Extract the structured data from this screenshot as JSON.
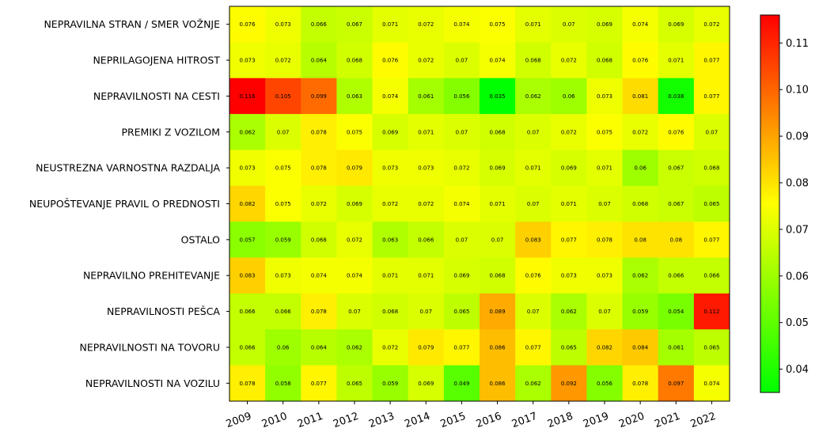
{
  "chart_data": {
    "type": "heatmap",
    "title": "",
    "xlabel": "",
    "ylabel": "",
    "colorscale": [
      "#00ff00",
      "#ffff00",
      "#ff0000"
    ],
    "vmin": 0.035,
    "vmax": 0.116,
    "colorbar_ticks": [
      "0.04",
      "0.05",
      "0.06",
      "0.07",
      "0.08",
      "0.09",
      "0.10",
      "0.11"
    ],
    "columns": [
      "2009",
      "2010",
      "2011",
      "2012",
      "2013",
      "2014",
      "2015",
      "2016",
      "2017",
      "2018",
      "2019",
      "2020",
      "2021",
      "2022"
    ],
    "rows": [
      "NEPRAVILNA STRAN / SMER VOŽNJE",
      "NEPRILAGOJENA HITROST",
      "NEPRAVILNOSTI NA CESTI",
      "PREMIKI Z VOZILOM",
      "NEUSTREZNA VARNOSTNA RAZDALJA",
      "NEUPOŠTEVANJE PRAVIL O PREDNOSTI",
      "OSTALO",
      "NEPRAVILNO PREHITEVANJE",
      "NEPRAVILNOSTI PEŠCA",
      "NEPRAVILNOSTI NA TOVORU",
      "NEPRAVILNOSTI NA VOZILU"
    ],
    "values": [
      [
        0.076,
        0.073,
        0.066,
        0.067,
        0.071,
        0.072,
        0.074,
        0.075,
        0.071,
        0.07,
        0.069,
        0.074,
        0.069,
        0.072
      ],
      [
        0.073,
        0.072,
        0.064,
        0.068,
        0.076,
        0.072,
        0.07,
        0.074,
        0.068,
        0.072,
        0.068,
        0.076,
        0.071,
        0.077
      ],
      [
        0.116,
        0.105,
        0.099,
        0.063,
        0.074,
        0.061,
        0.056,
        0.035,
        0.062,
        0.06,
        0.073,
        0.081,
        0.038,
        0.077
      ],
      [
        0.062,
        0.07,
        0.078,
        0.075,
        0.069,
        0.071,
        0.07,
        0.068,
        0.07,
        0.072,
        0.075,
        0.072,
        0.076,
        0.07
      ],
      [
        0.073,
        0.075,
        0.078,
        0.079,
        0.073,
        0.073,
        0.072,
        0.069,
        0.071,
        0.069,
        0.071,
        0.06,
        0.067,
        0.068
      ],
      [
        0.082,
        0.075,
        0.072,
        0.069,
        0.072,
        0.072,
        0.074,
        0.071,
        0.07,
        0.071,
        0.07,
        0.068,
        0.067,
        0.065
      ],
      [
        0.057,
        0.059,
        0.068,
        0.072,
        0.063,
        0.066,
        0.07,
        0.07,
        0.083,
        0.077,
        0.078,
        0.08,
        0.08,
        0.077
      ],
      [
        0.083,
        0.073,
        0.074,
        0.074,
        0.071,
        0.071,
        0.069,
        0.068,
        0.076,
        0.073,
        0.073,
        0.062,
        0.066,
        0.066
      ],
      [
        0.066,
        0.066,
        0.078,
        0.07,
        0.068,
        0.07,
        0.065,
        0.089,
        0.07,
        0.062,
        0.07,
        0.059,
        0.054,
        0.112
      ],
      [
        0.066,
        0.06,
        0.064,
        0.062,
        0.072,
        0.079,
        0.077,
        0.086,
        0.077,
        0.065,
        0.082,
        0.084,
        0.061,
        0.065
      ],
      [
        0.078,
        0.058,
        0.077,
        0.065,
        0.059,
        0.069,
        0.049,
        0.086,
        0.062,
        0.092,
        0.056,
        0.078,
        0.097,
        0.074
      ]
    ]
  }
}
